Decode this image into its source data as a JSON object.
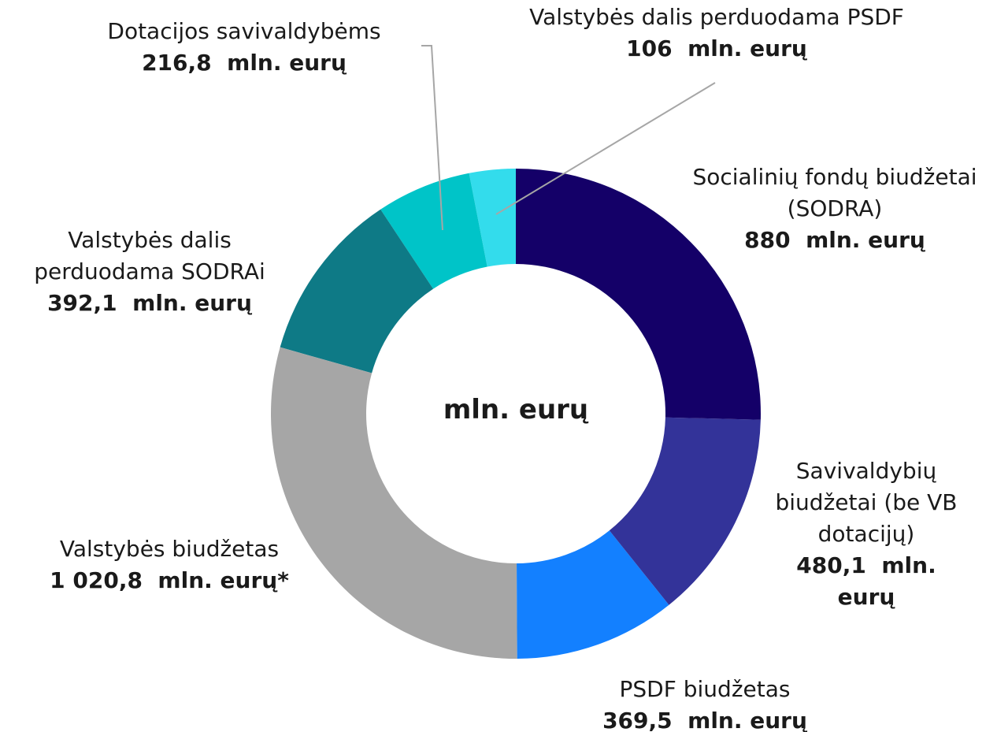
{
  "chart_data": {
    "type": "donut",
    "center_label": "mln. eurų",
    "categories": [
      "Socialinių fondų biudžetai (SODRA)",
      "Savivaldybių biudžetai (be VB dotacijų)",
      "PSDF biudžetas",
      "Valstybės biudžetas",
      "Valstybės dalis perduodama SODRAi",
      "Dotacijos savivaldybėms",
      "Valstybės dalis perduodama PSDF"
    ],
    "values": [
      880,
      480.1,
      369.5,
      1020.8,
      392.1,
      216.8,
      106
    ],
    "value_labels": [
      "880  mln. eurų",
      "480,1  mln. eurų",
      "369,5  mln. eurų",
      "1 020,8  mln. eurų*",
      "392,1  mln. eurų",
      "216,8  mln. eurų",
      "106  mln. eurų"
    ],
    "colors": [
      "#140068",
      "#333399",
      "#1380ff",
      "#a6a6a6",
      "#0e7a86",
      "#00c4c8",
      "#33dcec"
    ]
  }
}
